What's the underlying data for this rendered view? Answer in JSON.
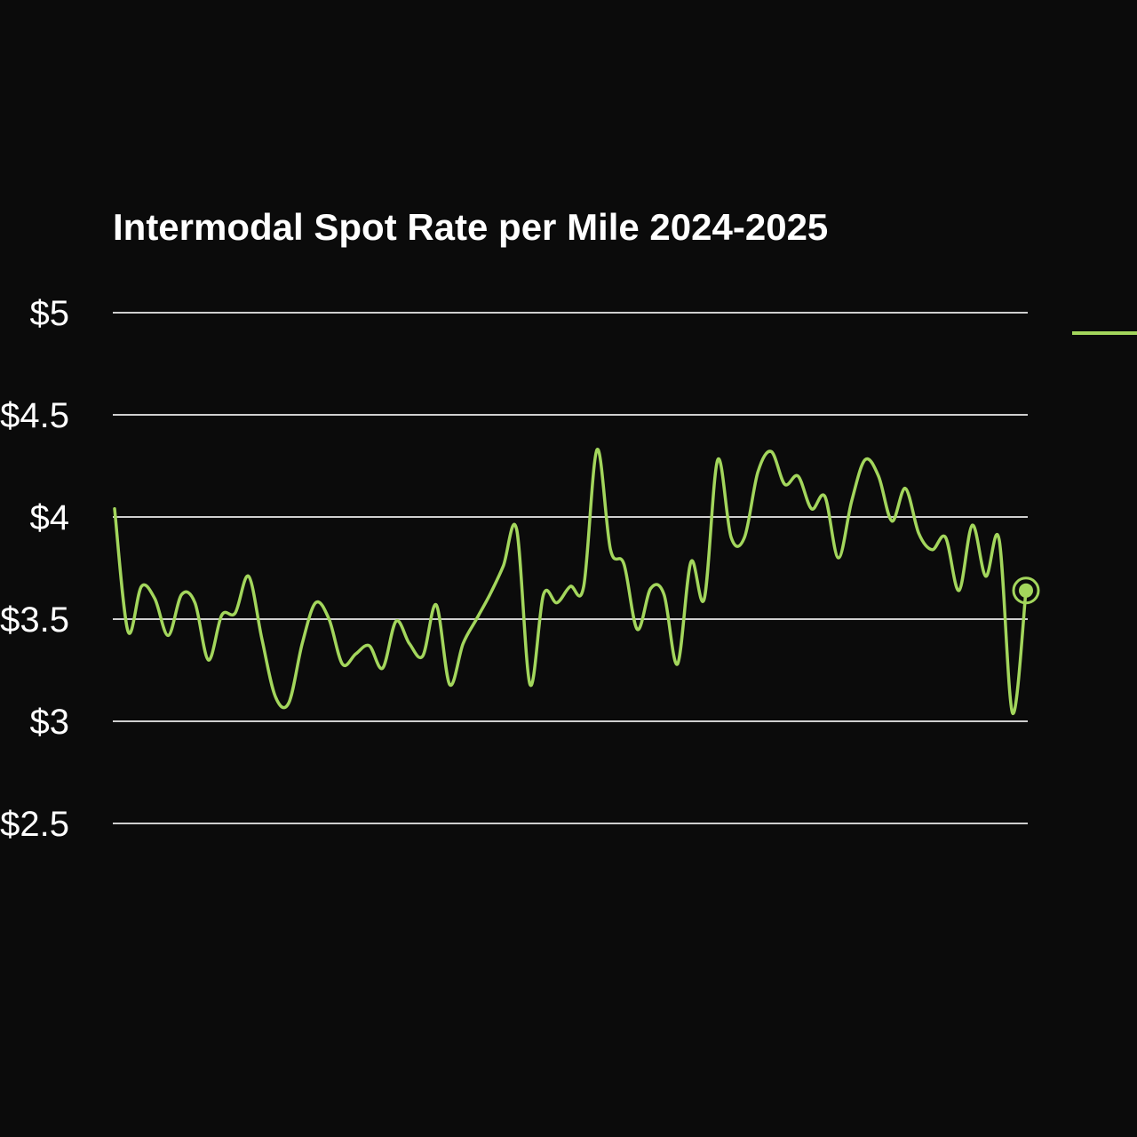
{
  "chart_data": {
    "type": "line",
    "title": "Intermodal Spot Rate per Mile 2024-2025",
    "xlabel": "",
    "ylabel": "",
    "ylim": [
      2.5,
      5
    ],
    "yticks": [
      {
        "value": 5,
        "label": "$5"
      },
      {
        "value": 4.5,
        "label": "$4.5"
      },
      {
        "value": 4,
        "label": "$4"
      },
      {
        "value": 3.5,
        "label": "$3.5"
      },
      {
        "value": 3,
        "label": "$3"
      },
      {
        "value": 2.5,
        "label": "$2.5"
      }
    ],
    "grid": true,
    "legend": "right",
    "x_axis_labels": "none",
    "series": [
      {
        "color": "#a3d65c",
        "marker_on_last": true,
        "values": [
          4.04,
          3.44,
          3.66,
          3.6,
          3.42,
          3.62,
          3.58,
          3.3,
          3.52,
          3.53,
          3.71,
          3.4,
          3.12,
          3.09,
          3.38,
          3.58,
          3.5,
          3.28,
          3.33,
          3.37,
          3.26,
          3.49,
          3.38,
          3.32,
          3.57,
          3.18,
          3.38,
          3.5,
          3.62,
          3.76,
          3.94,
          3.18,
          3.62,
          3.58,
          3.66,
          3.66,
          4.33,
          3.84,
          3.77,
          3.45,
          3.65,
          3.62,
          3.28,
          3.78,
          3.6,
          4.28,
          3.9,
          3.9,
          4.22,
          4.32,
          4.16,
          4.2,
          4.04,
          4.1,
          3.8,
          4.08,
          4.28,
          4.2,
          3.98,
          4.14,
          3.92,
          3.84,
          3.9,
          3.64,
          3.96,
          3.71,
          3.89,
          3.04,
          3.64
        ]
      }
    ]
  }
}
